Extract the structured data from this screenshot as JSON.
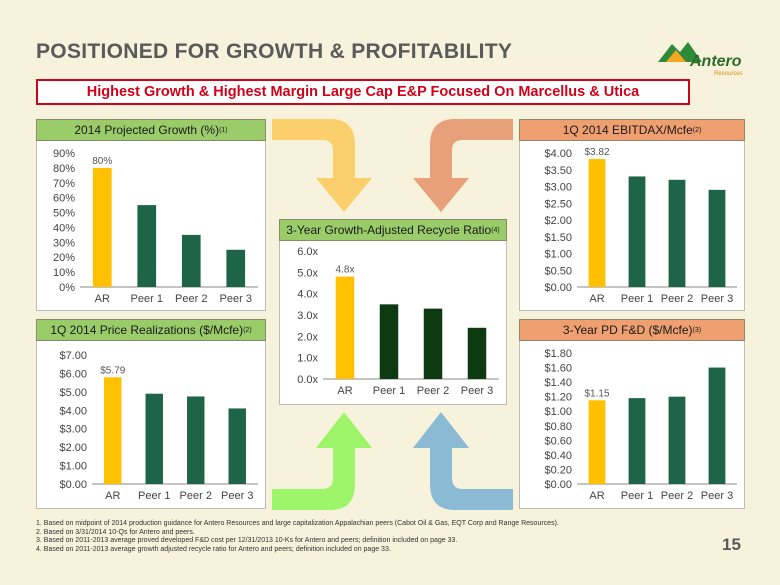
{
  "title": "POSITIONED FOR GROWTH & PROFITABILITY",
  "logo": {
    "word": "Antero",
    "sub": "Resources"
  },
  "banner": "Highest Growth & Highest Margin Large Cap E&P Focused On Marcellus & Utica",
  "colors": {
    "highlight": "#FFC000",
    "bar": "#1E6448",
    "bar_center": "#0E3A12",
    "banner_red": "#D0021B"
  },
  "panels": {
    "growth": {
      "title": "2014 Projected Growth (%)",
      "sup": "(1)"
    },
    "ebitdax": {
      "title": "1Q 2014 EBITDAX/Mcfe",
      "sup": "(2)"
    },
    "recycle": {
      "title": "3-Year Growth-Adjusted Recycle Ratio",
      "sup": "(4)"
    },
    "price": {
      "title": "1Q 2014 Price Realizations ($/Mcfe)",
      "sup": "(2)"
    },
    "fd": {
      "title": "3-Year PD F&D ($/Mcfe)",
      "sup": "(3)"
    }
  },
  "chart_data": [
    {
      "id": "growth",
      "type": "bar",
      "categories": [
        "AR",
        "Peer 1",
        "Peer 2",
        "Peer 3"
      ],
      "values": [
        80,
        55,
        35,
        25
      ],
      "ylim": [
        0,
        90
      ],
      "ticks": [
        "0%",
        "10%",
        "20%",
        "30%",
        "40%",
        "50%",
        "60%",
        "70%",
        "80%",
        "90%"
      ],
      "data_labels": [
        "80%"
      ]
    },
    {
      "id": "ebitdax",
      "type": "bar",
      "categories": [
        "AR",
        "Peer 1",
        "Peer 2",
        "Peer 3"
      ],
      "values": [
        3.82,
        3.3,
        3.2,
        2.9
      ],
      "ylim": [
        0,
        4
      ],
      "ticks": [
        "$0.00",
        "$0.50",
        "$1.00",
        "$1.50",
        "$2.00",
        "$2.50",
        "$3.00",
        "$3.50",
        "$4.00"
      ],
      "data_labels": [
        "$3.82"
      ]
    },
    {
      "id": "recycle",
      "type": "bar",
      "categories": [
        "AR",
        "Peer 1",
        "Peer 2",
        "Peer 3"
      ],
      "values": [
        4.8,
        3.5,
        3.3,
        2.4
      ],
      "ylim": [
        0,
        6
      ],
      "ticks": [
        "0.0x",
        "1.0x",
        "2.0x",
        "3.0x",
        "4.0x",
        "5.0x",
        "6.0x"
      ],
      "data_labels": [
        "4.8x"
      ]
    },
    {
      "id": "price",
      "type": "bar",
      "categories": [
        "AR",
        "Peer 1",
        "Peer 2",
        "Peer 3"
      ],
      "values": [
        5.79,
        4.9,
        4.75,
        4.1
      ],
      "ylim": [
        0,
        7
      ],
      "ticks": [
        "$0.00",
        "$1.00",
        "$2.00",
        "$3.00",
        "$4.00",
        "$5.00",
        "$6.00",
        "$7.00"
      ],
      "data_labels": [
        "$5.79"
      ]
    },
    {
      "id": "fd",
      "type": "bar",
      "categories": [
        "AR",
        "Peer 1",
        "Peer 2",
        "Peer 3"
      ],
      "values": [
        1.15,
        1.18,
        1.2,
        1.6
      ],
      "ylim": [
        0,
        1.8
      ],
      "ticks": [
        "$0.00",
        "$0.20",
        "$0.40",
        "$0.60",
        "$0.80",
        "$1.00",
        "$1.20",
        "$1.40",
        "$1.60",
        "$1.80"
      ],
      "data_labels": [
        "$1.15"
      ]
    }
  ],
  "footnotes": [
    "1.  Based on midpoint of 2014 production guidance for Antero Resources and large capitalization Appalachian peers (Cabot Oil & Gas, EQT Corp and Range Resources).",
    "2.  Based on 3/31/2014 10-Qs for Antero and peers.",
    "3.  Based on 2011-2013 average proved developed F&D cost per 12/31/2013 10-Ks for Antero and peers; definition included on page 33.",
    "4.  Based on 2011-2013 average growth adjusted recycle ratio for Antero and peers; definition included on page 33."
  ],
  "page_number": "15"
}
